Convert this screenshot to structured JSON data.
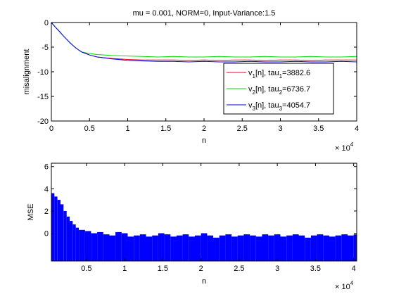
{
  "figure": {
    "background": "#ffffff"
  },
  "chart_data": [
    {
      "type": "line",
      "title": "mu = 0.001, NORM=0, Input-Variance:1.5",
      "xlabel": "n",
      "ylabel": "misalignment",
      "x_exponent_label": "× 10",
      "x_exponent": "4",
      "xlim": [
        0,
        40000
      ],
      "ylim": [
        -20,
        0
      ],
      "xticks": [
        "0",
        "0.5",
        "1",
        "1.5",
        "2",
        "2.5",
        "3",
        "3.5",
        "4"
      ],
      "xtick_values": [
        0,
        5000,
        10000,
        15000,
        20000,
        25000,
        30000,
        35000,
        40000
      ],
      "yticks": [
        "0",
        "-5",
        "-10",
        "-15",
        "-20"
      ],
      "ytick_values": [
        0,
        -5,
        -10,
        -15,
        -20
      ],
      "grid": false,
      "legend_position": "bottom-right",
      "series": [
        {
          "name_base": "v",
          "name_sub": "1",
          "name_mid": "[n], tau",
          "name_sub2": "1",
          "name_tail": "=3882.6",
          "color": "#ff0000",
          "x": [
            0,
            500,
            1000,
            1500,
            2000,
            2500,
            3000,
            3500,
            4000,
            5000,
            6000,
            8000,
            10000,
            12000,
            14000,
            16000,
            18000,
            20000,
            22000,
            24000,
            26000,
            28000,
            30000,
            32000,
            34000,
            36000,
            38000,
            40000
          ],
          "y": [
            0,
            -0.9,
            -1.7,
            -2.6,
            -3.4,
            -4.2,
            -4.9,
            -5.5,
            -6.0,
            -6.6,
            -7.0,
            -7.3,
            -7.5,
            -7.6,
            -7.6,
            -7.6,
            -7.7,
            -7.6,
            -7.7,
            -7.6,
            -7.6,
            -7.7,
            -7.6,
            -7.6,
            -7.7,
            -7.6,
            -7.6,
            -7.6
          ]
        },
        {
          "name_base": "v",
          "name_sub": "2",
          "name_mid": "[n], tau",
          "name_sub2": "2",
          "name_tail": "=6736.7",
          "color": "#00dd00",
          "x": [
            0,
            500,
            1000,
            1500,
            2000,
            2500,
            3000,
            3500,
            4000,
            5000,
            6000,
            8000,
            10000,
            12000,
            14000,
            16000,
            18000,
            20000,
            22000,
            24000,
            26000,
            28000,
            30000,
            32000,
            34000,
            36000,
            38000,
            40000
          ],
          "y": [
            0,
            -0.9,
            -1.7,
            -2.6,
            -3.4,
            -4.2,
            -4.9,
            -5.5,
            -6.0,
            -6.3,
            -6.5,
            -6.7,
            -6.8,
            -6.9,
            -7.0,
            -6.9,
            -7.0,
            -7.0,
            -6.9,
            -7.0,
            -7.0,
            -6.9,
            -7.0,
            -7.0,
            -6.9,
            -7.0,
            -7.0,
            -6.9
          ]
        },
        {
          "name_base": "v",
          "name_sub": "3",
          "name_mid": "[n], tau",
          "name_sub2": "3",
          "name_tail": "=4054.7",
          "color": "#0000ff",
          "x": [
            0,
            500,
            1000,
            1500,
            2000,
            2500,
            3000,
            3500,
            4000,
            5000,
            6000,
            8000,
            10000,
            12000,
            14000,
            16000,
            18000,
            20000,
            22000,
            24000,
            26000,
            28000,
            30000,
            32000,
            34000,
            36000,
            38000,
            40000
          ],
          "y": [
            0,
            -0.9,
            -1.7,
            -2.6,
            -3.4,
            -4.2,
            -4.9,
            -5.5,
            -6.0,
            -6.6,
            -7.0,
            -7.4,
            -7.7,
            -7.8,
            -7.9,
            -7.9,
            -8.0,
            -7.9,
            -8.0,
            -8.0,
            -7.9,
            -8.0,
            -8.0,
            -7.9,
            -8.0,
            -8.0,
            -7.9,
            -8.0
          ]
        }
      ]
    },
    {
      "type": "bar",
      "title": "",
      "xlabel": "n",
      "ylabel": "MSE",
      "x_exponent_label": "× 10",
      "x_exponent": "4",
      "xlim": [
        400,
        40400
      ],
      "ylim": [
        -2.5,
        6.3
      ],
      "xticks": [
        "0.5",
        "1",
        "1.5",
        "2",
        "2.5",
        "3",
        "3.5",
        "4"
      ],
      "xtick_values": [
        5000,
        10000,
        15000,
        20000,
        25000,
        30000,
        35000,
        40000
      ],
      "yticks": [
        "6",
        "4",
        "2",
        "0"
      ],
      "ytick_values": [
        6,
        4,
        2,
        0
      ],
      "grid": false,
      "baseline": -2.5,
      "bar_color": "#0000ff",
      "x": [
        400,
        800,
        1200,
        1600,
        2000,
        2400,
        2800,
        3200,
        3600,
        4000,
        4800,
        5600,
        6400,
        7200,
        8000,
        8800,
        9600,
        10400,
        11200,
        12000,
        12800,
        13600,
        14400,
        15200,
        16000,
        16800,
        17600,
        18400,
        19200,
        20000,
        20800,
        21600,
        22400,
        23200,
        24000,
        24800,
        25600,
        26400,
        27200,
        28000,
        28800,
        29600,
        30400,
        31200,
        32000,
        32800,
        33600,
        34400,
        35200,
        36000,
        36800,
        37600,
        38400,
        39200,
        40000
      ],
      "values": [
        3.6,
        3.3,
        3.0,
        2.6,
        2.0,
        1.5,
        1.1,
        0.8,
        0.5,
        0.3,
        0.2,
        0.0,
        0.1,
        -0.1,
        -0.2,
        0.1,
        0.0,
        -0.3,
        -0.2,
        -0.1,
        -0.3,
        -0.2,
        0.0,
        -0.1,
        -0.3,
        -0.2,
        -0.1,
        -0.3,
        -0.2,
        0.0,
        -0.2,
        -0.4,
        -0.2,
        -0.1,
        -0.3,
        -0.2,
        -0.1,
        -0.2,
        -0.3,
        -0.1,
        -0.2,
        -0.1,
        -0.3,
        -0.2,
        -0.1,
        -0.2,
        -0.4,
        -0.2,
        -0.1,
        -0.2,
        -0.3,
        -0.2,
        -0.1,
        -0.2,
        -0.1
      ]
    }
  ]
}
